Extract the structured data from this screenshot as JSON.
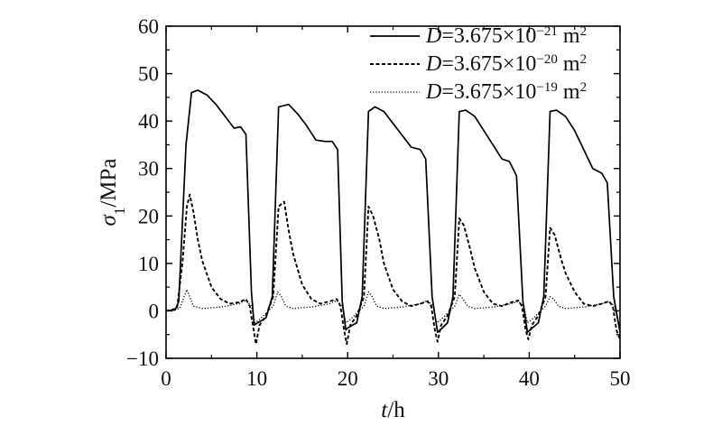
{
  "chart_data": {
    "type": "line",
    "title": "",
    "xlabel": {
      "symbol": "t",
      "unit": "/h"
    },
    "ylabel": {
      "symbol": "σ",
      "subscript": "1",
      "unit": "/MPa"
    },
    "xlim": [
      0,
      50
    ],
    "ylim": [
      -10,
      60
    ],
    "xticks": [
      0,
      10,
      20,
      30,
      40,
      50
    ],
    "yticks": [
      -10,
      0,
      10,
      20,
      30,
      40,
      50,
      60
    ],
    "xtick_labels": [
      "0",
      "10",
      "20",
      "30",
      "40",
      "50"
    ],
    "ytick_labels": [
      "−10",
      "0",
      "10",
      "20",
      "30",
      "40",
      "50",
      "60"
    ],
    "grid": false,
    "legend_position": "top-right",
    "series": [
      {
        "name": "D=3.675×10⁻²¹ m²",
        "legend": {
          "var": "D",
          "text": "=3.675×10",
          "exp": "−21",
          "unit": " m",
          "unitexp": "2"
        },
        "style": "solid",
        "color": "#000000",
        "x": [
          0,
          1,
          1.4,
          2.2,
          2.8,
          3.5,
          4.5,
          5.5,
          6.5,
          7.5,
          8.2,
          8.8,
          9.4,
          9.7,
          10.1,
          11,
          11.7,
          12.4,
          13.5,
          14.5,
          15.5,
          16.5,
          17.5,
          18.3,
          18.9,
          19.4,
          19.8,
          20.1,
          21,
          21.6,
          22.3,
          23,
          24,
          25,
          26,
          27,
          28,
          28.6,
          29.3,
          29.9,
          30.2,
          31,
          31.6,
          32.3,
          33,
          34,
          35,
          36,
          37,
          37.8,
          38.6,
          39.3,
          39.8,
          40.1,
          41,
          41.6,
          42.3,
          43,
          44,
          45,
          46,
          47,
          48,
          48.6,
          49.3,
          50
        ],
        "y": [
          0,
          0.2,
          2,
          35,
          46,
          46.5,
          45.5,
          43.5,
          41,
          38.5,
          38.8,
          37.2,
          4,
          -3,
          -2.5,
          -1.5,
          3,
          43,
          43.5,
          41.5,
          39,
          36,
          35.7,
          35.7,
          34,
          2,
          -4,
          -3.5,
          -2.5,
          3,
          42,
          43,
          42,
          39.5,
          37,
          34.5,
          34,
          32,
          3,
          -4.5,
          -4,
          -2.5,
          3,
          42,
          42.3,
          41,
          38,
          35,
          32,
          31.5,
          28.5,
          2,
          -4.5,
          -4,
          -2.5,
          3,
          42,
          42.3,
          41,
          38,
          34,
          30,
          29,
          27,
          3,
          -4.5
        ]
      },
      {
        "name": "D=3.675×10⁻²⁰ m²",
        "legend": {
          "var": "D",
          "text": "=3.675×10",
          "exp": "−20",
          "unit": " m",
          "unitexp": "2"
        },
        "style": "dashed",
        "color": "#000000",
        "x": [
          0,
          1.2,
          1.8,
          2.3,
          2.6,
          3,
          3.5,
          4,
          5,
          6,
          7,
          8,
          8.8,
          9.2,
          9.6,
          9.9,
          10.3,
          11,
          11.8,
          12.4,
          13,
          13.5,
          14,
          15,
          16,
          17,
          18,
          18.8,
          19.2,
          19.6,
          19.9,
          20.3,
          21,
          21.8,
          22.3,
          22.8,
          23.5,
          24,
          25,
          26,
          27,
          28,
          28.8,
          29.2,
          29.6,
          29.9,
          30.3,
          31,
          31.8,
          32.3,
          32.8,
          33.5,
          34,
          35,
          36,
          37,
          38,
          38.8,
          39.2,
          39.6,
          39.9,
          40.3,
          41,
          41.8,
          42.3,
          42.8,
          43.5,
          44,
          45,
          46,
          47,
          48,
          48.8,
          49.2,
          49.6,
          50
        ],
        "y": [
          0,
          0.5,
          10,
          22,
          24.5,
          21,
          15,
          10.5,
          5,
          2.5,
          1.5,
          1.8,
          2.5,
          1,
          -3.5,
          -7,
          -3,
          -1,
          3,
          22,
          23,
          17,
          12,
          5.5,
          2.5,
          1.5,
          2,
          2.5,
          1,
          -4,
          -7,
          -3,
          -1,
          3,
          22,
          20,
          15,
          10,
          4.5,
          2,
          1,
          1.5,
          2,
          1,
          -4,
          -6.5,
          -3,
          -1,
          3,
          19.5,
          18,
          13,
          9,
          4,
          1.5,
          1,
          1.8,
          2.2,
          1,
          -4,
          -6,
          -3,
          -1,
          3,
          17.5,
          16,
          11,
          8,
          4,
          1.5,
          1,
          1.5,
          2,
          1,
          -4,
          -6
        ]
      },
      {
        "name": "D=3.675×10⁻¹⁹ m²",
        "legend": {
          "var": "D",
          "text": "=3.675×10",
          "exp": "−19",
          "unit": " m",
          "unitexp": "2"
        },
        "style": "dotted",
        "color": "#000000",
        "x": [
          0,
          1.5,
          2,
          2.3,
          2.6,
          3,
          4,
          6,
          8,
          8.8,
          9.4,
          9.8,
          10.2,
          11,
          11.8,
          12.3,
          12.7,
          13.2,
          14,
          16,
          18,
          18.8,
          19.4,
          19.8,
          20.2,
          21,
          21.8,
          22.3,
          22.7,
          23.2,
          24,
          26,
          28,
          28.8,
          29.4,
          29.8,
          30.2,
          31,
          31.8,
          32.3,
          32.7,
          33.2,
          34,
          36,
          38,
          38.8,
          39.4,
          39.8,
          40.2,
          41,
          41.8,
          42.3,
          42.7,
          43.2,
          44,
          46,
          48,
          48.8,
          49.4,
          49.8,
          50
        ],
        "y": [
          0,
          0.5,
          3,
          4.5,
          3,
          1,
          0.5,
          0.8,
          1.5,
          2.2,
          1,
          -2.5,
          -2,
          -0.5,
          1,
          4,
          3,
          1,
          0.5,
          0.8,
          1.5,
          2.2,
          1,
          -2.5,
          -2,
          -0.5,
          1,
          4,
          3,
          1,
          0.5,
          0.8,
          1.5,
          2.2,
          1,
          -2.5,
          -2,
          -0.5,
          1,
          3.5,
          2.5,
          1,
          0.5,
          0.8,
          1.5,
          2,
          1,
          -2.5,
          -2,
          -0.5,
          1,
          3,
          2.5,
          1,
          0.5,
          0.8,
          1.5,
          2,
          1,
          -2.5,
          -2
        ]
      }
    ]
  }
}
